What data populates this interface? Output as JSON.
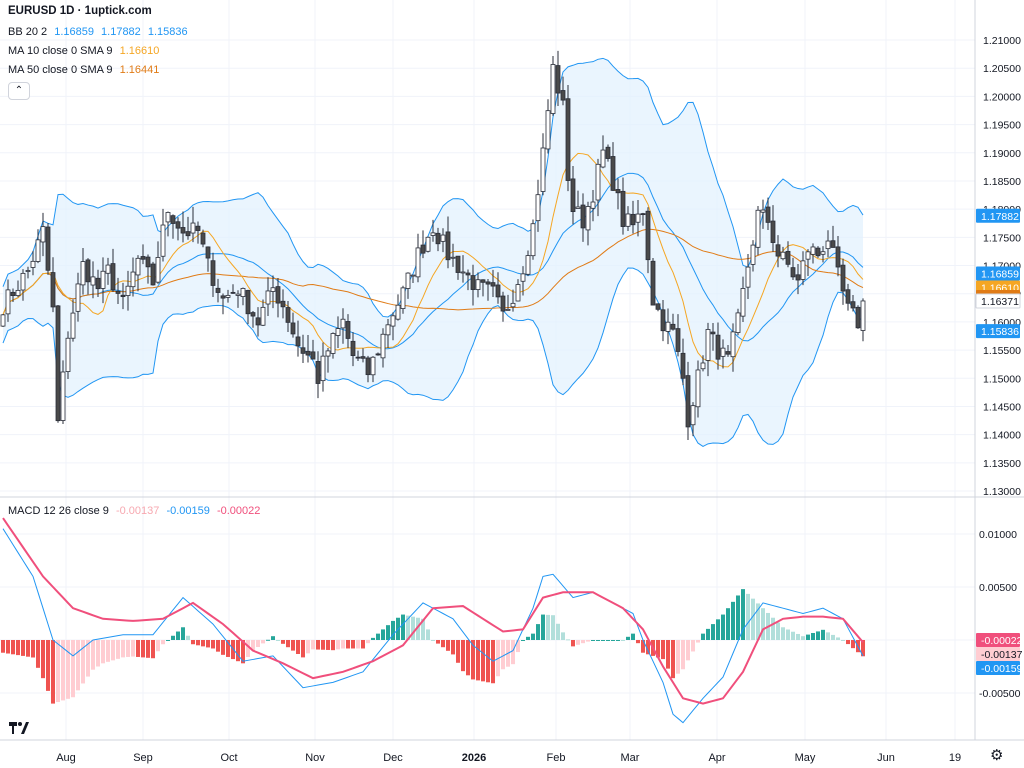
{
  "legend": {
    "title": "EURUSD 1D · 1uptick.com",
    "bb": {
      "label": "BB 20 2",
      "v1": "1.16859",
      "v2": "1.17882",
      "v3": "1.15836"
    },
    "ma10": {
      "label": "MA 10 close 0 SMA 9",
      "value": "1.16610"
    },
    "ma50": {
      "label": "MA 50 close 0 SMA 9",
      "value": "1.16441"
    },
    "macd": {
      "label": "MACD 12 26 close 9",
      "hist": "-0.00137",
      "macd": "-0.00159",
      "signal": "-0.00022"
    }
  },
  "colors": {
    "up": "#26a69a",
    "down": "#ef5350",
    "upFaint": "#b2dfdb",
    "downFaint": "#ffcdd2",
    "bb": "#2196f3",
    "bbFill": "#e3f2fd",
    "ma10": "#f5a623",
    "ma50": "#e07b16",
    "macd": "#2196f3",
    "signal": "#f04f7c",
    "candle": "#4a4a4a"
  },
  "price_axis": {
    "ticks": [
      "1.21000",
      "1.20500",
      "1.20000",
      "1.19500",
      "1.19000",
      "1.18500",
      "1.18000",
      "1.17500",
      "1.17000",
      "1.16500",
      "1.16000",
      "1.15500",
      "1.15000",
      "1.14500",
      "1.14000",
      "1.13500",
      "1.13000"
    ],
    "badges": [
      {
        "value": "1.17882",
        "color": "#2196f3"
      },
      {
        "value": "1.16859",
        "color": "#2196f3"
      },
      {
        "value": "1.16610",
        "color": "#f5a623"
      },
      {
        "value": "1.16441",
        "color": "#e07b16"
      },
      {
        "value": "1.16371",
        "color": "#ffffff"
      },
      {
        "value": "1.15836",
        "color": "#2196f3"
      }
    ]
  },
  "macd_axis": {
    "ticks": [
      "0.01000",
      "0.00500",
      "0.00000",
      "-0.00500"
    ],
    "badges": [
      {
        "value": "-0.00022",
        "color": "#f04f7c"
      },
      {
        "value": "-0.00137",
        "color": "#ffcdd2"
      },
      {
        "value": "-0.00159",
        "color": "#2196f3"
      }
    ]
  },
  "time_axis": [
    "Aug",
    "Sep",
    "Oct",
    "Nov",
    "Dec",
    "2026",
    "Feb",
    "Mar",
    "Apr",
    "May",
    "Jun",
    "19"
  ],
  "chart_data": {
    "type": "candlestick",
    "symbol": "EURUSD",
    "timeframe": "1D",
    "price_ylim": [
      1.128,
      1.212
    ],
    "macd_ylim": [
      -0.0082,
      0.0115
    ],
    "x_labels": [
      "Aug",
      "Sep",
      "Oct",
      "Nov",
      "Dec",
      "2026",
      "Feb",
      "Mar",
      "Apr",
      "May",
      "Jun",
      "19"
    ],
    "price_path": [
      [
        0,
        1.163
      ],
      [
        5,
        1.169
      ],
      [
        8,
        1.176
      ],
      [
        10,
        1.162
      ],
      [
        11,
        1.142
      ],
      [
        13,
        1.158
      ],
      [
        16,
        1.17
      ],
      [
        19,
        1.166
      ],
      [
        21,
        1.169
      ],
      [
        24,
        1.163
      ],
      [
        27,
        1.171
      ],
      [
        30,
        1.167
      ],
      [
        31,
        1.172
      ],
      [
        33,
        1.18
      ],
      [
        36,
        1.176
      ],
      [
        39,
        1.176
      ],
      [
        41,
        1.17
      ],
      [
        44,
        1.164
      ],
      [
        47,
        1.166
      ],
      [
        51,
        1.16
      ],
      [
        54,
        1.166
      ],
      [
        56,
        1.163
      ],
      [
        59,
        1.156
      ],
      [
        62,
        1.153
      ],
      [
        63,
        1.15
      ],
      [
        65,
        1.155
      ],
      [
        68,
        1.16
      ],
      [
        70,
        1.154
      ],
      [
        73,
        1.151
      ],
      [
        75,
        1.155
      ],
      [
        77,
        1.16
      ],
      [
        80,
        1.165
      ],
      [
        83,
        1.172
      ],
      [
        86,
        1.177
      ],
      [
        89,
        1.172
      ],
      [
        92,
        1.169
      ],
      [
        95,
        1.166
      ],
      [
        98,
        1.165
      ],
      [
        100,
        1.161
      ],
      [
        102,
        1.165
      ],
      [
        104,
        1.17
      ],
      [
        106,
        1.177
      ],
      [
        108,
        1.19
      ],
      [
        110,
        1.205
      ],
      [
        112,
        1.198
      ],
      [
        113,
        1.186
      ],
      [
        114,
        1.18
      ],
      [
        116,
        1.178
      ],
      [
        118,
        1.183
      ],
      [
        120,
        1.19
      ],
      [
        122,
        1.185
      ],
      [
        124,
        1.178
      ],
      [
        126,
        1.177
      ],
      [
        128,
        1.18
      ],
      [
        130,
        1.164
      ],
      [
        132,
        1.16
      ],
      [
        134,
        1.158
      ],
      [
        136,
        1.15
      ],
      [
        137,
        1.143
      ],
      [
        139,
        1.15
      ],
      [
        141,
        1.158
      ],
      [
        143,
        1.155
      ],
      [
        145,
        1.153
      ],
      [
        147,
        1.16
      ],
      [
        149,
        1.17
      ],
      [
        151,
        1.179
      ],
      [
        153,
        1.178
      ],
      [
        155,
        1.172
      ],
      [
        157,
        1.17
      ],
      [
        159,
        1.167
      ],
      [
        161,
        1.173
      ],
      [
        163,
        1.172
      ],
      [
        165,
        1.175
      ],
      [
        167,
        1.168
      ],
      [
        169,
        1.162
      ],
      [
        171,
        1.16
      ],
      [
        172,
        1.16371
      ]
    ],
    "macd_path": [
      [
        0,
        0.0105
      ],
      [
        6,
        0.006
      ],
      [
        10,
        0.0
      ],
      [
        14,
        -0.0015
      ],
      [
        18,
        0.0
      ],
      [
        24,
        0.0005
      ],
      [
        30,
        0.0005
      ],
      [
        36,
        0.004
      ],
      [
        42,
        0.0015
      ],
      [
        48,
        -0.002
      ],
      [
        54,
        -0.0015
      ],
      [
        60,
        -0.0045
      ],
      [
        66,
        -0.004
      ],
      [
        72,
        -0.003
      ],
      [
        78,
        0.0005
      ],
      [
        84,
        0.0035
      ],
      [
        90,
        0.002
      ],
      [
        94,
        -0.0005
      ],
      [
        98,
        -0.002
      ],
      [
        102,
        -0.001
      ],
      [
        106,
        0.003
      ],
      [
        108,
        0.006
      ],
      [
        110,
        0.0062
      ],
      [
        114,
        0.004
      ],
      [
        118,
        0.0045
      ],
      [
        122,
        0.0035
      ],
      [
        126,
        0.0025
      ],
      [
        128,
        0.0
      ],
      [
        132,
        -0.004
      ],
      [
        134,
        -0.007
      ],
      [
        136,
        -0.0078
      ],
      [
        140,
        -0.0055
      ],
      [
        144,
        -0.0035
      ],
      [
        148,
        0.001
      ],
      [
        152,
        0.0035
      ],
      [
        156,
        0.003
      ],
      [
        160,
        0.0025
      ],
      [
        164,
        0.003
      ],
      [
        168,
        0.002
      ],
      [
        172,
        -0.0015
      ]
    ],
    "signal_path": [
      [
        0,
        0.0115
      ],
      [
        8,
        0.006
      ],
      [
        14,
        0.003
      ],
      [
        20,
        0.002
      ],
      [
        26,
        0.0018
      ],
      [
        32,
        0.002
      ],
      [
        38,
        0.0035
      ],
      [
        44,
        0.0015
      ],
      [
        50,
        -0.001
      ],
      [
        56,
        -0.0022
      ],
      [
        62,
        -0.0036
      ],
      [
        68,
        -0.003
      ],
      [
        74,
        -0.002
      ],
      [
        80,
        -0.0005
      ],
      [
        86,
        0.003
      ],
      [
        92,
        0.0032
      ],
      [
        96,
        0.002
      ],
      [
        100,
        0.0008
      ],
      [
        104,
        0.001
      ],
      [
        108,
        0.004
      ],
      [
        112,
        0.0045
      ],
      [
        118,
        0.0045
      ],
      [
        124,
        0.003
      ],
      [
        128,
        0.001
      ],
      [
        132,
        -0.0025
      ],
      [
        136,
        -0.0055
      ],
      [
        140,
        -0.006
      ],
      [
        144,
        -0.0055
      ],
      [
        148,
        -0.003
      ],
      [
        152,
        0.001
      ],
      [
        156,
        0.002
      ],
      [
        160,
        0.0022
      ],
      [
        164,
        0.0022
      ],
      [
        168,
        0.002
      ],
      [
        172,
        -0.00022
      ]
    ]
  }
}
